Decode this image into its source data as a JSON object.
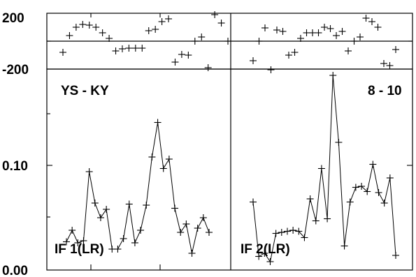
{
  "chart_data": [
    {
      "type": "scatter",
      "panel": "phase-left",
      "ylim": [
        -200,
        200
      ],
      "yticks": [
        "200",
        "-200"
      ],
      "grid": false,
      "values": [
        -80,
        40,
        100,
        120,
        115,
        100,
        60,
        20,
        -70,
        -55,
        -50,
        -50,
        -50,
        75,
        85,
        140,
        160,
        -150,
        -95,
        -100,
        0,
        30,
        -190,
        190,
        130,
        0
      ]
    },
    {
      "type": "scatter",
      "panel": "phase-right",
      "ylim": [
        -200,
        200
      ],
      "values": [
        -140,
        0,
        95,
        -205,
        80,
        70,
        -100,
        -80,
        20,
        60,
        60,
        60,
        100,
        90,
        40,
        70,
        -70,
        0,
        30,
        165,
        140,
        100,
        -160,
        -175,
        -60
      ]
    },
    {
      "type": "line",
      "panel": "amplitude-left",
      "ylim": [
        0,
        0.2
      ],
      "yticks": [
        "0.10",
        "0.00"
      ],
      "label": "YS - KY",
      "annotation": "IF 1(LR)",
      "values": [
        0.027,
        0.038,
        0.026,
        0.028,
        0.094,
        0.064,
        0.05,
        0.058,
        0.02,
        0.02,
        0.03,
        0.063,
        0.026,
        0.038,
        0.062,
        0.108,
        0.141,
        0.097,
        0.106,
        0.059,
        0.036,
        0.044,
        0.016,
        0.04,
        0.05,
        0.036
      ]
    },
    {
      "type": "line",
      "panel": "amplitude-right",
      "ylim": [
        0,
        0.2
      ],
      "label": "8 - 10",
      "annotation": "IF 2(LR)",
      "values": [
        0.065,
        0.013,
        0.016,
        0.008,
        0.035,
        0.036,
        0.037,
        0.038,
        0.037,
        0.031,
        0.068,
        0.047,
        0.097,
        0.049,
        0.186,
        0.122,
        0.023,
        0.065,
        0.079,
        0.08,
        0.075,
        0.101,
        0.074,
        0.064,
        0.088,
        0.014
      ]
    }
  ]
}
